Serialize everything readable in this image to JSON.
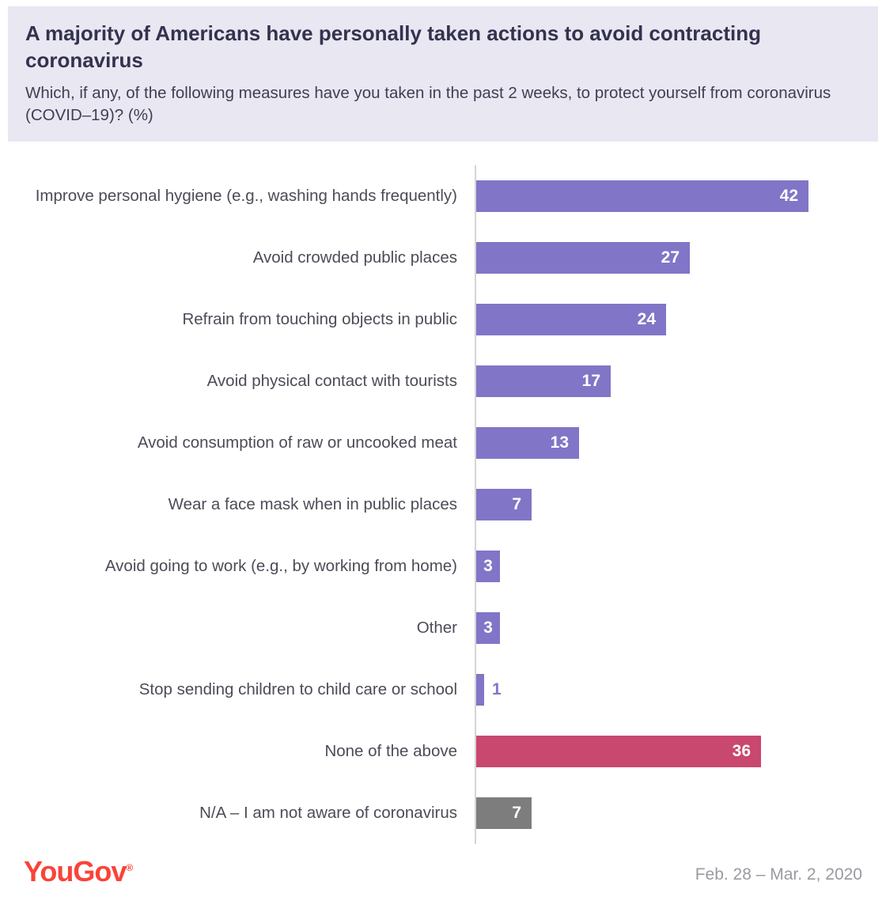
{
  "chart_data": {
    "type": "bar",
    "orientation": "horizontal",
    "title": "A majority of Americans have personally taken actions to avoid contracting coronavirus",
    "subtitle": "Which, if any, of the following measures have you taken in the past 2 weeks, to protect yourself from coronavirus (COVID–19)? (%)",
    "categories": [
      "Improve personal hygiene (e.g., washing hands frequently)",
      "Avoid crowded public places",
      "Refrain from touching objects in public",
      "Avoid physical contact with tourists",
      "Avoid consumption of raw or uncooked meat",
      "Wear a face mask when in public places",
      "Avoid going to work (e.g., by working from home)",
      "Other",
      "Stop sending children to child care or school",
      "None of the above",
      "N/A – I am not aware of coronavirus"
    ],
    "values": [
      42,
      27,
      24,
      17,
      13,
      7,
      3,
      3,
      1,
      36,
      7
    ],
    "bar_colors": [
      "#8175c7",
      "#8175c7",
      "#8175c7",
      "#8175c7",
      "#8175c7",
      "#8175c7",
      "#8175c7",
      "#8175c7",
      "#8175c7",
      "#c8486f",
      "#7d7d7d"
    ],
    "value_label_color_inside": "#ffffff",
    "value_label_color_outside": "#8175c7",
    "xlim": [
      0,
      45
    ],
    "grid": false,
    "legend": false,
    "axis_line_color": "#d4d4d4"
  },
  "footer": {
    "brand": "YouGov",
    "registered": "®",
    "date_range": "Feb. 28 – Mar. 2, 2020"
  },
  "colors": {
    "header_background": "#e9e7f2",
    "title_text": "#33334f",
    "label_text": "#4c4c58",
    "brand_red": "#fa4338",
    "date_text": "#9a9aa0"
  }
}
